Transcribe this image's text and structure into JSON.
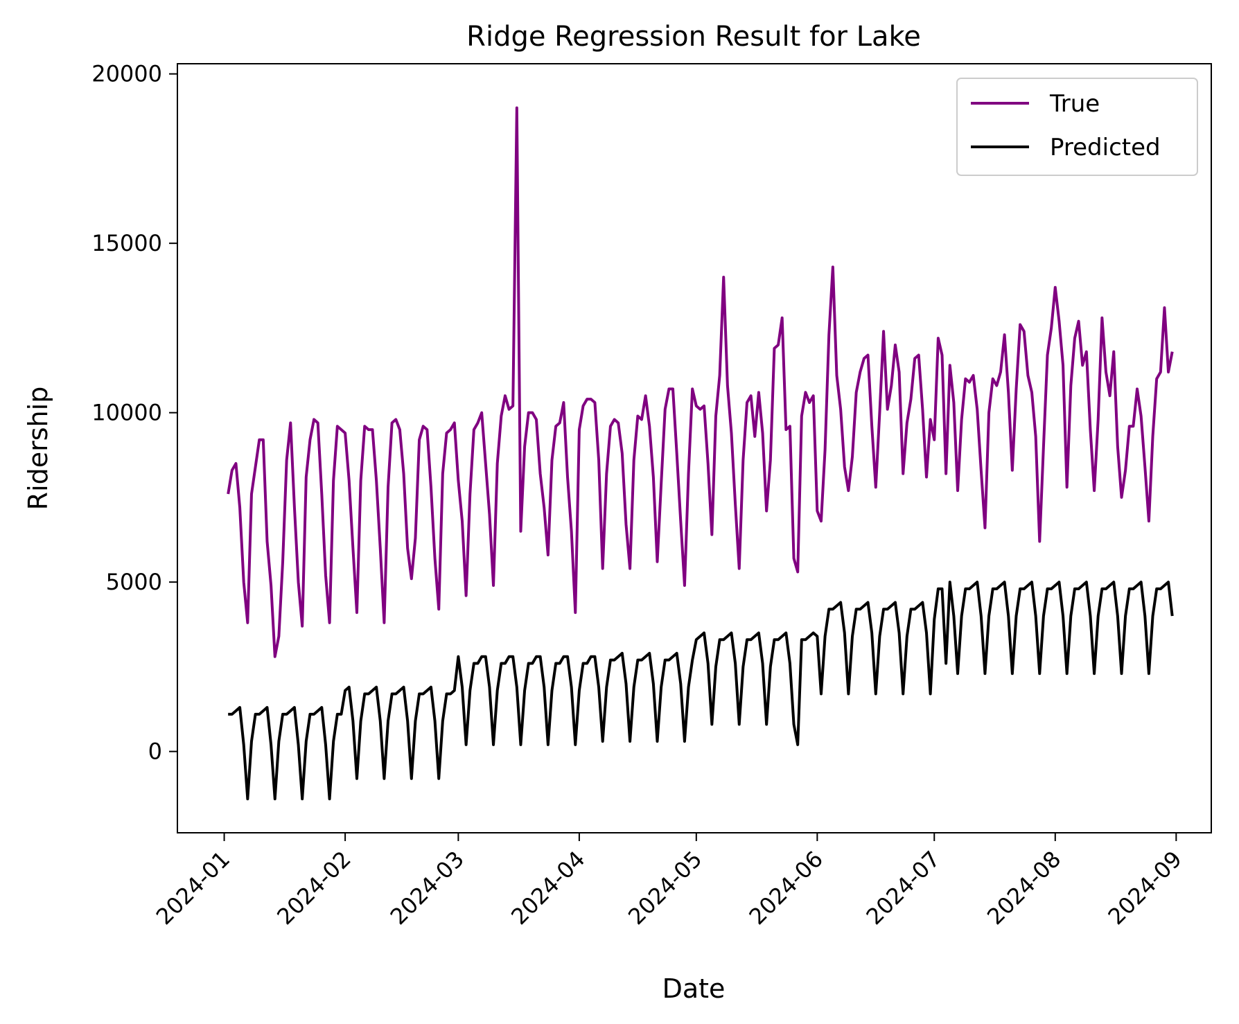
{
  "chart_data": {
    "type": "line",
    "title": "Ridge Regression Result for Lake",
    "xlabel": "Date",
    "ylabel": "Ridership",
    "x_start": "2024-01-02",
    "x_end": "2024-08-31",
    "xlim": [
      "2023-12-20",
      "2024-09-10"
    ],
    "ylim": [
      -2400,
      20300
    ],
    "yticks": [
      0,
      5000,
      10000,
      15000,
      20000
    ],
    "xticks": [
      "2024-01-01",
      "2024-02-01",
      "2024-03-01",
      "2024-04-01",
      "2024-05-01",
      "2024-06-01",
      "2024-07-01",
      "2024-08-01",
      "2024-09-01"
    ],
    "xtick_labels": [
      "2024-01",
      "2024-02",
      "2024-03",
      "2024-04",
      "2024-05",
      "2024-06",
      "2024-07",
      "2024-08",
      "2024-09"
    ],
    "ytick_labels": [
      "0",
      "5000",
      "10000",
      "15000",
      "20000"
    ],
    "grid": false,
    "legend_position": "top-right",
    "series": [
      {
        "name": "True",
        "color": "#800080",
        "values": [
          7600,
          8300,
          8500,
          7200,
          5000,
          3800,
          7600,
          8400,
          9200,
          9200,
          6200,
          4900,
          2800,
          3400,
          5600,
          8600,
          9700,
          7200,
          5000,
          3700,
          8100,
          9200,
          9800,
          9700,
          7600,
          5200,
          3800,
          8000,
          9600,
          9500,
          9400,
          8000,
          6000,
          4100,
          8000,
          9600,
          9500,
          9500,
          8000,
          6000,
          3800,
          7800,
          9700,
          9800,
          9500,
          8200,
          6000,
          5100,
          6300,
          9200,
          9600,
          9500,
          7800,
          5700,
          4200,
          8200,
          9400,
          9500,
          9700,
          8000,
          6800,
          4600,
          7600,
          9500,
          9700,
          10000,
          8500,
          7000,
          4900,
          8500,
          9900,
          10500,
          10100,
          10200,
          19000,
          6500,
          9000,
          10000,
          10000,
          9800,
          8200,
          7200,
          5800,
          8600,
          9600,
          9700,
          10300,
          8100,
          6500,
          4100,
          9500,
          10200,
          10400,
          10400,
          10300,
          8600,
          5400,
          8200,
          9600,
          9800,
          9700,
          8800,
          6700,
          5400,
          8600,
          9900,
          9800,
          10500,
          9600,
          8100,
          5600,
          7900,
          10100,
          10700,
          10700,
          8800,
          6800,
          4900,
          8200,
          10700,
          10200,
          10100,
          10200,
          8500,
          6400,
          9900,
          11100,
          14000,
          10800,
          9400,
          7300,
          5400,
          8600,
          10300,
          10500,
          9300,
          10600,
          9400,
          7100,
          8600,
          11900,
          12000,
          12800,
          9500,
          9600,
          5700,
          5300,
          9900,
          10600,
          10300,
          10500,
          7100,
          6800,
          8900,
          12300,
          14300,
          11100,
          10100,
          8400,
          7700,
          8700,
          10600,
          11200,
          11600,
          11700,
          9600,
          7800,
          10000,
          12400,
          10100,
          10800,
          12000,
          11200,
          8200,
          9700,
          10400,
          11600,
          11700,
          10100,
          8100,
          9800,
          9200,
          12200,
          11700,
          8200,
          11400,
          10300,
          7700,
          9800,
          11000,
          10900,
          11100,
          10100,
          8300,
          6600,
          10000,
          11000,
          10800,
          11200,
          12300,
          10600,
          8300,
          10700,
          12600,
          12400,
          11100,
          10600,
          9300,
          6200,
          9000,
          11700,
          12500,
          13700,
          12700,
          11400,
          7800,
          10800,
          12200,
          12700,
          11400,
          11800,
          9500,
          7700,
          9800,
          12800,
          11200,
          10500,
          11800,
          9000,
          7500,
          8300,
          9600,
          9600,
          10700,
          9900,
          8400,
          6800,
          9300,
          11000,
          11200,
          13100,
          11200,
          11800
        ]
      },
      {
        "name": "Predicted",
        "color": "#000000",
        "values": [
          1100,
          1100,
          1200,
          1300,
          200,
          -1400,
          300,
          1100,
          1100,
          1200,
          1300,
          200,
          -1400,
          300,
          1100,
          1100,
          1200,
          1300,
          200,
          -1400,
          300,
          1100,
          1100,
          1200,
          1300,
          200,
          -1400,
          300,
          1100,
          1100,
          1800,
          1900,
          900,
          -800,
          900,
          1700,
          1700,
          1800,
          1900,
          900,
          -800,
          900,
          1700,
          1700,
          1800,
          1900,
          900,
          -800,
          900,
          1700,
          1700,
          1800,
          1900,
          900,
          -800,
          900,
          1700,
          1700,
          1800,
          2800,
          1900,
          200,
          1800,
          2600,
          2600,
          2800,
          2800,
          1900,
          200,
          1800,
          2600,
          2600,
          2800,
          2800,
          1900,
          200,
          1800,
          2600,
          2600,
          2800,
          2800,
          1900,
          200,
          1800,
          2600,
          2600,
          2800,
          2800,
          1900,
          200,
          1800,
          2600,
          2600,
          2800,
          2800,
          1900,
          300,
          1900,
          2700,
          2700,
          2800,
          2900,
          2000,
          300,
          1900,
          2700,
          2700,
          2800,
          2900,
          2000,
          300,
          1900,
          2700,
          2700,
          2800,
          2900,
          2000,
          300,
          1900,
          2700,
          3300,
          3400,
          3500,
          2600,
          800,
          2500,
          3300,
          3300,
          3400,
          3500,
          2600,
          800,
          2500,
          3300,
          3300,
          3400,
          3500,
          2600,
          800,
          2500,
          3300,
          3300,
          3400,
          3500,
          2600,
          800,
          200,
          3300,
          3300,
          3400,
          3500,
          3400,
          1700,
          3400,
          4200,
          4200,
          4300,
          4400,
          3500,
          1700,
          3400,
          4200,
          4200,
          4300,
          4400,
          3500,
          1700,
          3400,
          4200,
          4200,
          4300,
          4400,
          3500,
          1700,
          3400,
          4200,
          4200,
          4300,
          4400,
          3500,
          1700,
          3900,
          4800,
          4800,
          2600,
          5000,
          4000,
          2300,
          4000,
          4800,
          4800,
          4900,
          5000,
          4000,
          2300,
          4000,
          4800,
          4800,
          4900,
          5000,
          4000,
          2300,
          4000,
          4800,
          4800,
          4900,
          5000,
          4000,
          2300,
          4000,
          4800,
          4800,
          4900,
          5000,
          4000,
          2300,
          4000,
          4800,
          4800,
          4900,
          5000,
          4000,
          2300,
          4000,
          4800,
          4800,
          4900,
          5000,
          4000,
          2300,
          4000,
          4800,
          4800,
          4900,
          5000,
          4000,
          2300,
          4000,
          4800,
          4800,
          4900,
          5000,
          4000
        ]
      }
    ]
  }
}
